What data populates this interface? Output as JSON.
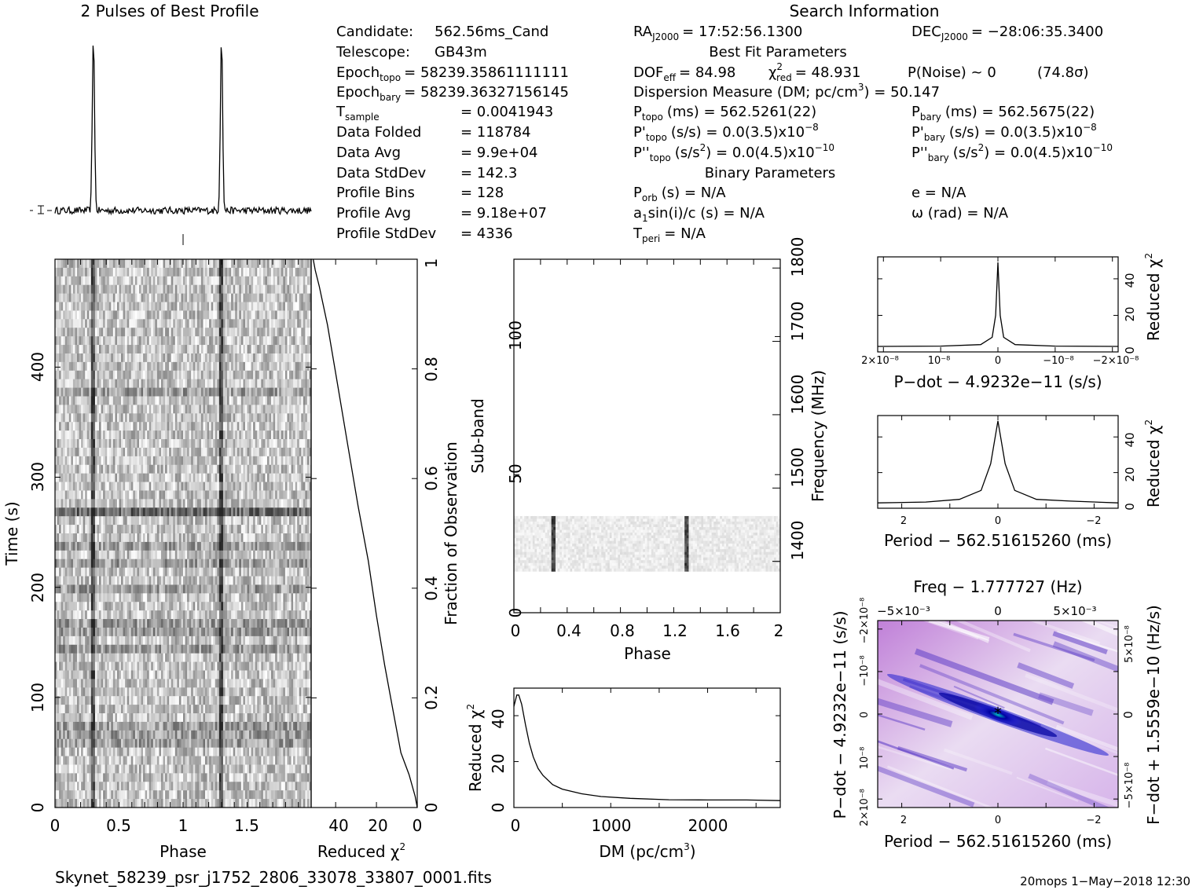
{
  "profile_title": "2 Pulses of Best Profile",
  "search_title": "Search Information",
  "best_fit_title": "Best Fit Parameters",
  "binary_title": "Binary Parameters",
  "info_left": [
    {
      "label": "Candidate:",
      "value": "562.56ms_Cand"
    },
    {
      "label": "Telescope:",
      "value": "GB43m"
    },
    {
      "label": "Epoch",
      "sub": "topo",
      "value": "= 58239.35861111111"
    },
    {
      "label": "Epoch",
      "sub": "bary",
      "value": "= 58239.36327156145"
    },
    {
      "label": "T",
      "sub": "sample",
      "value": "=   0.0041943"
    },
    {
      "label": "Data Folded",
      "value": "=   118784"
    },
    {
      "label": "Data Avg",
      "value": "=   9.9e+04"
    },
    {
      "label": "Data StdDev",
      "value": "=   142.3"
    },
    {
      "label": "Profile Bins",
      "value": "=   128"
    },
    {
      "label": "Profile Avg",
      "value": "=   9.18e+07"
    },
    {
      "label": "Profile StdDev",
      "value": "=   4336"
    }
  ],
  "info_right": {
    "ra": "RA",
    "ra_sub": "J2000",
    "ra_value": "= 17:52:56.1300",
    "dec": "DEC",
    "dec_sub": "J2000",
    "dec_value": "= −28:06:35.3400",
    "dof": "DOF",
    "dof_sub": "eff",
    "dof_value": "= 84.98",
    "chi": "χ",
    "chi_sup": "2",
    "chi_sub": "red",
    "chi_value": "= 48.931",
    "pnoise": "P(Noise) ~ 0",
    "sigma": "(74.8σ)",
    "dm_label": "Dispersion Measure (DM; pc/cm",
    "dm_sup": "3",
    "dm_value": ") = 50.147",
    "ptopo": "P",
    "ptopo_sub": "topo",
    "ptopo_value": "(ms) =  562.5261(22)",
    "pbary": "P",
    "pbary_sub": "bary",
    "pbary_value": "(ms) =  562.5675(22)",
    "pdtopo": "P'",
    "pdtopo_sub": "topo",
    "pdtopo_value": "(s/s) = 0.0(3.5)x10",
    "pdtopo_exp": "−8",
    "pdbary": "P'",
    "pdbary_sub": "bary",
    "pdbary_value": "(s/s) = 0.0(3.5)x10",
    "pdbary_exp": "−8",
    "pddtopo": "P''",
    "pddtopo_sub": "topo",
    "pddtopo_value": "(s/s",
    "pddtopo_sup": "2",
    "pddtopo_value2": ") = 0.0(4.5)x10",
    "pddtopo_exp": "−10",
    "pddbary": "P''",
    "pddbary_sub": "bary",
    "pddbary_value": "(s/s",
    "pddbary_sup": "2",
    "pddbary_value2": ") = 0.0(4.5)x10",
    "pddbary_exp": "−10",
    "porb": "P",
    "porb_sub": "orb",
    "porb_value": "(s) = N/A",
    "a1": "a",
    "a1_sub": "1",
    "a1_value": "sin(i)/c (s) = N/A",
    "tperi": "T",
    "tperi_sub": "peri",
    "tperi_value": "= N/A",
    "ecc": "e = N/A",
    "omega": "ω (rad) = N/A"
  },
  "footer": {
    "filename": "Skynet_58239_psr_j1752_2806_33078_33807_0001.fits",
    "stamp": "20mops   1−May−2018 12:30"
  },
  "chart_data": [
    {
      "id": "pulse_profile",
      "type": "line",
      "title": "2 Pulses of Best Profile",
      "x_range": [
        0,
        2
      ],
      "pulse_phase": [
        0.3,
        1.3
      ],
      "peak_relative_height": 1.0,
      "baseline_relative_height": 0.0
    },
    {
      "id": "time_phase",
      "type": "heatmap",
      "xlabel": "Phase",
      "ylabel": "Time (s)",
      "x_ticks": [
        "0",
        "0.5",
        "1",
        "1.5"
      ],
      "y_ticks": [
        "0",
        "100",
        "200",
        "300",
        "400"
      ],
      "xlim": [
        0,
        2
      ],
      "ylim": [
        0,
        498
      ],
      "pulse_phase": [
        0.3,
        1.3
      ],
      "bright_time_s": 270
    },
    {
      "id": "chi_vs_time",
      "type": "line",
      "xlabel": "Reduced χ",
      "xlabel_sup": "2",
      "ylabel": "Fraction of Observation",
      "x_ticks": [
        "40",
        "20",
        "0"
      ],
      "y_ticks": [
        "0",
        "0.2",
        "0.4",
        "0.6",
        "0.8",
        "1"
      ],
      "xlim": [
        52,
        0
      ],
      "ylim": [
        0,
        1
      ],
      "points": [
        [
          0,
          0
        ],
        [
          1,
          0.02
        ],
        [
          4,
          0.06
        ],
        [
          8,
          0.1
        ],
        [
          12,
          0.18
        ],
        [
          16,
          0.26
        ],
        [
          20,
          0.35
        ],
        [
          24,
          0.45
        ],
        [
          29,
          0.55
        ],
        [
          34,
          0.66
        ],
        [
          39,
          0.77
        ],
        [
          44,
          0.88
        ],
        [
          48,
          0.95
        ],
        [
          50,
          0.98
        ],
        [
          51,
          1.0
        ]
      ]
    },
    {
      "id": "subband_phase",
      "type": "heatmap",
      "xlabel": "Phase",
      "ylabel": "Sub-band",
      "ylabel_right": "Frequency (MHz)",
      "x_ticks": [
        "0",
        "0.4",
        "0.8",
        "1.2",
        "1.6",
        "2"
      ],
      "y_ticks": [
        "0",
        "50",
        "100"
      ],
      "y2_ticks": [
        "1400",
        "1500",
        "1600",
        "1700",
        "1800"
      ],
      "xlim": [
        0,
        2
      ],
      "ylim": [
        0,
        128
      ],
      "y2lim": [
        1330,
        1812
      ],
      "band_subbands": [
        15,
        35
      ],
      "pulse_phase": [
        0.3,
        1.3
      ]
    },
    {
      "id": "dm_curve",
      "type": "line",
      "xlabel": "DM (pc/cm",
      "xlabel_sup": "3",
      "xlabel_end": ")",
      "ylabel": "Reduced χ",
      "ylabel_sup": "2",
      "x_ticks": [
        "0",
        "1000",
        "2000"
      ],
      "y_ticks": [
        "0",
        "20",
        "40"
      ],
      "xlim": [
        0,
        2750
      ],
      "ylim": [
        0,
        52
      ],
      "points": [
        [
          0,
          44
        ],
        [
          30,
          49
        ],
        [
          50,
          49
        ],
        [
          80,
          45
        ],
        [
          120,
          36
        ],
        [
          160,
          28
        ],
        [
          200,
          22
        ],
        [
          250,
          17
        ],
        [
          300,
          14
        ],
        [
          400,
          10
        ],
        [
          500,
          8
        ],
        [
          700,
          6
        ],
        [
          900,
          4.8
        ],
        [
          1200,
          4
        ],
        [
          1600,
          3.4
        ],
        [
          2000,
          3.3
        ],
        [
          2400,
          3.3
        ],
        [
          2750,
          3
        ]
      ]
    },
    {
      "id": "pdot_curve",
      "type": "line",
      "xlabel": "P−dot − 4.9232e−11 (s/s)",
      "ylabel": "Reduced χ",
      "ylabel_sup": "2",
      "x_ticks": [
        "2×10⁻⁸",
        "10⁻⁸",
        "0",
        "−10⁻⁸",
        "−2×10⁻⁸"
      ],
      "y_ticks": [
        "0",
        "20",
        "40"
      ],
      "xlim": [
        2.1e-08,
        -2.1e-08
      ],
      "ylim": [
        0,
        52
      ],
      "points": [
        [
          2.1e-08,
          3
        ],
        [
          1e-08,
          3.2
        ],
        [
          3e-09,
          4
        ],
        [
          1e-09,
          8
        ],
        [
          4e-10,
          20
        ],
        [
          0,
          49
        ],
        [
          -4e-10,
          20
        ],
        [
          -1e-09,
          8
        ],
        [
          -3e-09,
          4
        ],
        [
          -1e-08,
          3.2
        ],
        [
          -2.1e-08,
          3
        ]
      ]
    },
    {
      "id": "period_curve",
      "type": "line",
      "xlabel": "Period − 562.51615260 (ms)",
      "ylabel": "Reduced χ",
      "ylabel_sup": "2",
      "x_ticks": [
        "2",
        "0",
        "−2"
      ],
      "y_ticks": [
        "0",
        "20",
        "40"
      ],
      "xlim": [
        2.5,
        -2.5
      ],
      "ylim": [
        0,
        52
      ],
      "points": [
        [
          2.5,
          3
        ],
        [
          1.5,
          3.5
        ],
        [
          0.8,
          5
        ],
        [
          0.35,
          10
        ],
        [
          0.15,
          25
        ],
        [
          0,
          49
        ],
        [
          -0.15,
          25
        ],
        [
          -0.35,
          10
        ],
        [
          -0.8,
          5
        ],
        [
          -1.5,
          4
        ],
        [
          -2.5,
          3
        ]
      ]
    },
    {
      "id": "p_pdot_plane",
      "type": "heatmap",
      "title": "Freq − 1.777727 (Hz)",
      "xlabel": "Period − 562.51615260 (ms)",
      "ylabel": "P−dot − 4.9232e−11 (s/s)",
      "ylabel_right": "F−dot + 1.5559e−10 (Hz/s)",
      "x_ticks": [
        "2",
        "0",
        "−2"
      ],
      "top_ticks": [
        "−5×10⁻³",
        "0",
        "5×10⁻³"
      ],
      "y_ticks": [
        "2×10⁻⁸",
        "10⁻⁸",
        "0",
        "−10⁻⁸",
        "−2×10⁻⁸"
      ],
      "right_ticks": [
        "−5×10⁻⁸",
        "0",
        "5×10⁻⁸"
      ],
      "xlim": [
        2.5,
        -2.5
      ],
      "ylim": [
        2.2e-08,
        -2.2e-08
      ],
      "best": [
        0,
        0
      ]
    }
  ]
}
